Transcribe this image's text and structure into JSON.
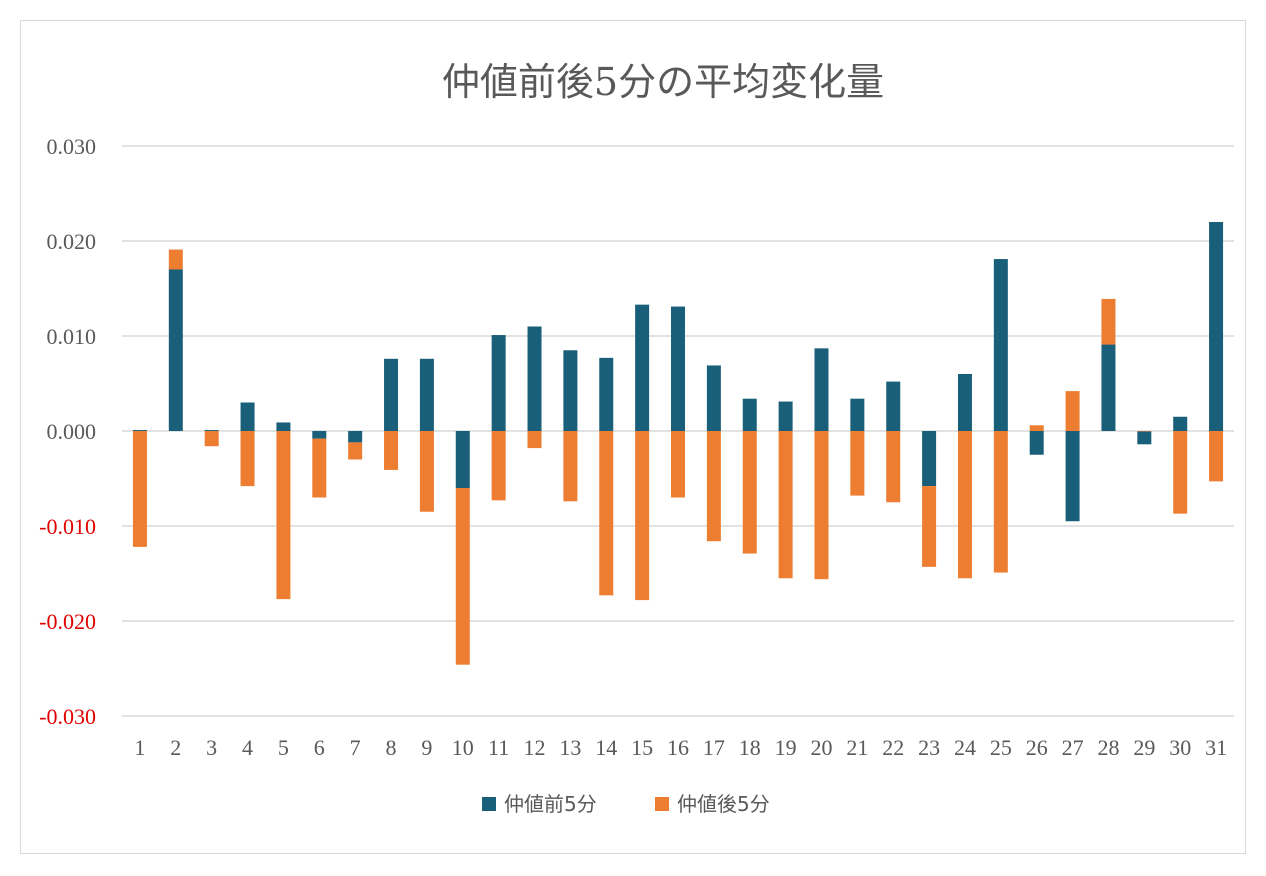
{
  "chart_data": {
    "type": "bar",
    "stacked": true,
    "title": "仲値前後5分の平均変化量",
    "xlabel": "",
    "ylabel": "",
    "ylim": [
      -0.03,
      0.03
    ],
    "yticks": [
      0.03,
      0.02,
      0.01,
      0.0,
      -0.01,
      -0.02,
      -0.03
    ],
    "ytick_labels": [
      "0.030",
      "0.020",
      "0.010",
      "0.000",
      "-0.010",
      "-0.020",
      "-0.030"
    ],
    "grid": true,
    "legend_position": "bottom",
    "categories": [
      "1",
      "2",
      "3",
      "4",
      "5",
      "6",
      "7",
      "8",
      "9",
      "10",
      "11",
      "12",
      "13",
      "14",
      "15",
      "16",
      "17",
      "18",
      "19",
      "20",
      "21",
      "22",
      "23",
      "24",
      "25",
      "26",
      "27",
      "28",
      "29",
      "30",
      "31"
    ],
    "series": [
      {
        "name": "仲値前5分",
        "color": "#1a5f7a",
        "values": [
          0.0001,
          0.017,
          0.0001,
          0.003,
          0.0009,
          -0.0008,
          -0.0012,
          0.0076,
          0.0076,
          -0.006,
          0.0101,
          0.011,
          0.0085,
          0.0077,
          0.0133,
          0.0131,
          0.0069,
          0.0034,
          0.0031,
          0.0087,
          0.0034,
          0.0052,
          -0.0058,
          0.006,
          0.0181,
          -0.0025,
          -0.0095,
          0.0091,
          -0.0014,
          0.0015,
          0.022
        ]
      },
      {
        "name": "仲値後5分",
        "color": "#ed7d31",
        "values": [
          -0.0122,
          0.0021,
          -0.0016,
          -0.0058,
          -0.0177,
          -0.0062,
          -0.0018,
          -0.0041,
          -0.0085,
          -0.0186,
          -0.0073,
          -0.0018,
          -0.0074,
          -0.0173,
          -0.0178,
          -0.007,
          -0.0116,
          -0.0129,
          -0.0155,
          -0.0156,
          -0.0068,
          -0.0075,
          -0.0085,
          -0.0155,
          -0.0149,
          0.0006,
          0.0042,
          0.0048,
          0.0,
          -0.0087,
          -0.0053
        ]
      }
    ]
  }
}
